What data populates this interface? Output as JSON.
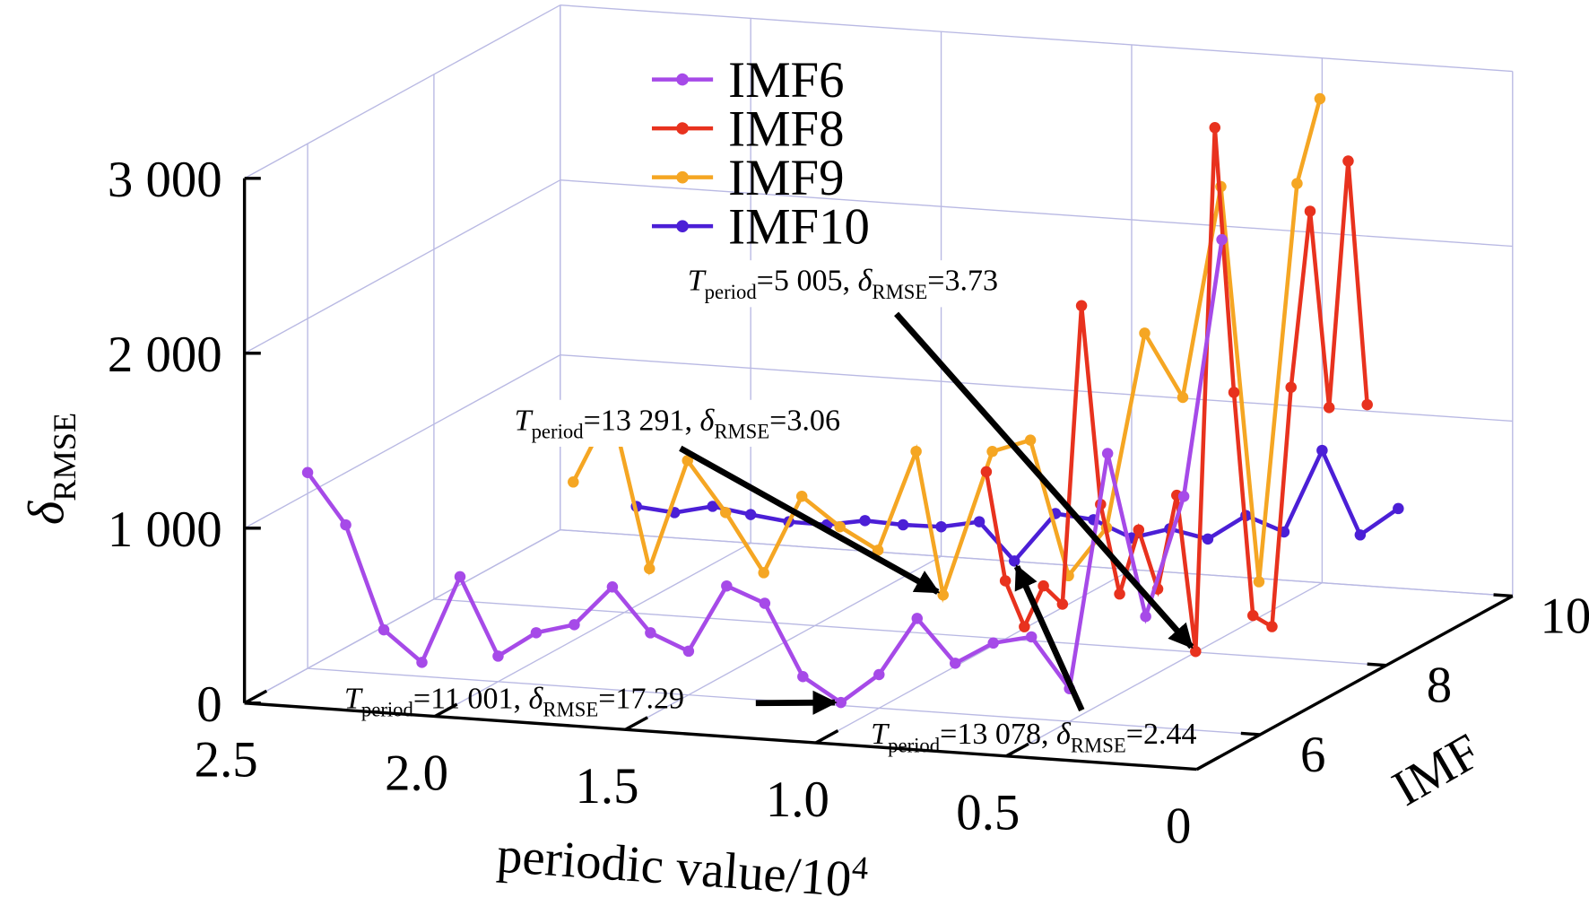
{
  "chart_data": {
    "type": "line3d",
    "x_label": [
      "periodic value/10",
      "4"
    ],
    "y_label": [
      "δ",
      "RMSE"
    ],
    "z_label": "IMF",
    "xlim": [
      2.5,
      0
    ],
    "xticks": [
      2.5,
      {
        "value": 2,
        "label": "2.0"
      },
      1.5,
      {
        "value": 1,
        "label": "1.0"
      },
      0.5,
      0
    ],
    "ylim": [
      0,
      3000
    ],
    "yticks": [
      0,
      {
        "value": 1000,
        "label": "1 000"
      },
      {
        "value": 2000,
        "label": "2 000"
      },
      {
        "value": 3000,
        "label": "3 000"
      }
    ],
    "zlim": [
      5,
      10
    ],
    "zticks": [
      6,
      8,
      10
    ],
    "grid": true,
    "series": [
      {
        "name": "IMF6",
        "color": "#a64ae8",
        "z": 6,
        "x": [
          2.5,
          2.4,
          2.3,
          2.2,
          2.1,
          2.0,
          1.9,
          1.8,
          1.7,
          1.6,
          1.5,
          1.4,
          1.3,
          1.2,
          1.1001,
          1.0,
          0.9,
          0.8,
          0.7,
          0.6,
          0.5,
          0.4,
          0.3,
          0.2,
          0.1
        ],
        "values": [
          1120,
          836,
          251,
          80,
          585,
          146,
          295,
          356,
          587,
          340,
          250,
          638,
          554,
          150,
          17.29,
          192,
          528,
          287,
          418,
          468,
          187,
          1547,
          630,
          1332,
          2815
        ]
      },
      {
        "name": "IMF8",
        "color": "#e8321e",
        "z": 8,
        "x": [
          1.05,
          1.0,
          0.95,
          0.9,
          0.85,
          0.8,
          0.75,
          0.7,
          0.65,
          0.6,
          0.55,
          0.5005,
          0.45,
          0.4,
          0.35,
          0.3,
          0.25,
          0.2,
          0.15,
          0.1,
          0.05
        ],
        "values": [
          948,
          332,
          77,
          318,
          221,
          1935,
          807,
          302,
          676,
          346,
          889,
          3.73,
          3006,
          1500,
          232,
          176,
          1552,
          2566,
          1451,
          2868,
          1483
        ]
      },
      {
        "name": "IMF9",
        "color": "#f5a623",
        "z": 9,
        "x": [
          2.3,
          2.2,
          2.1,
          2.0,
          1.9,
          1.8,
          1.7,
          1.6,
          1.5,
          1.4,
          1.3291,
          1.2,
          1.1,
          1.0,
          0.9,
          0.8,
          0.7,
          0.6,
          0.5,
          0.4,
          0.34
        ],
        "values": [
          502,
          942,
          37,
          670,
          388,
          59,
          511,
          352,
          233,
          813,
          3.06,
          843,
          923,
          163,
          453,
          1580,
          1228,
          2448,
          204,
          2496,
          2990
        ]
      },
      {
        "name": "IMF10",
        "color": "#4b1fd6",
        "z": 10,
        "x": [
          2.3,
          2.2,
          2.1,
          2.0,
          1.9,
          1.8,
          1.7,
          1.6,
          1.5,
          1.4,
          1.3078,
          1.2,
          1.1,
          1.0,
          0.9,
          0.8,
          0.7,
          0.6,
          0.5,
          0.4,
          0.3
        ],
        "values": [
          164,
          144,
          195,
          163,
          137,
          135,
          174,
          165,
          169,
          213,
          2.44,
          290,
          270,
          181,
          248,
          205,
          354,
          276,
          757,
          289,
          455
        ]
      }
    ],
    "annotations": [
      {
        "parts": [
          "T",
          "period",
          "=5 005, ",
          "δ",
          "RMSE",
          "=3.73"
        ]
      },
      {
        "parts": [
          "T",
          "period",
          "=13 291, ",
          "δ",
          "RMSE",
          "=3.06"
        ]
      },
      {
        "parts": [
          "T",
          "period",
          "=11 001, ",
          "δ",
          "RMSE",
          "=17.29"
        ]
      },
      {
        "parts": [
          "T",
          "period",
          "=13 078, ",
          "δ",
          "RMSE",
          "=2.44"
        ]
      }
    ]
  }
}
